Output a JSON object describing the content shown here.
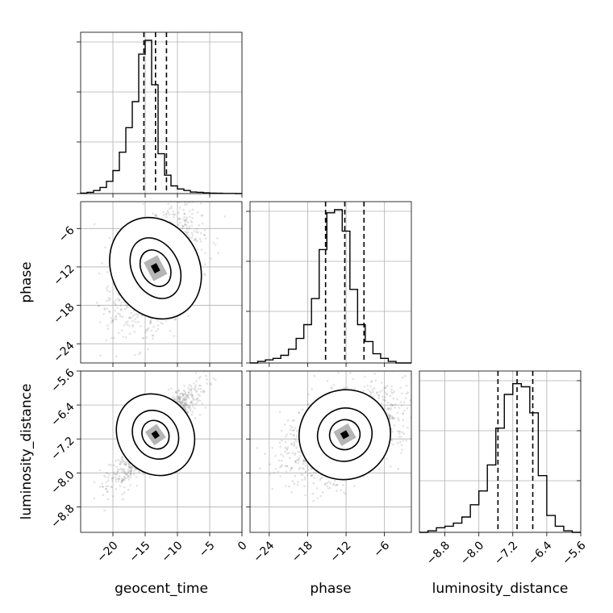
{
  "chart_data": {
    "type": "corner",
    "parameters": [
      "geocent_time",
      "phase",
      "luminosity_distance"
    ],
    "axis_labels": [
      "geocent_time",
      "phase",
      "luminosity_distance"
    ],
    "ranges": [
      [
        -25,
        0
      ],
      [
        -27,
        -1.8
      ],
      [
        -9.4,
        -5.6
      ]
    ],
    "ticks": [
      {
        "values": [
          -20,
          -15,
          -10,
          -5,
          0
        ],
        "labels": [
          "−20",
          "−15",
          "−10",
          "−5",
          "0"
        ]
      },
      {
        "values": [
          -24,
          -18,
          -12,
          -6
        ],
        "labels": [
          "−24",
          "−18",
          "−12",
          "−6"
        ]
      },
      {
        "values": [
          -8.8,
          -8.0,
          -7.2,
          -6.4,
          -5.6
        ],
        "labels": [
          "−8.8",
          "−8.0",
          "−7.2",
          "−6.4",
          "−5.6"
        ]
      }
    ],
    "quantiles": [
      [
        -15.2,
        -13.4,
        -11.7
      ],
      [
        -15.2,
        -12.2,
        -9.2
      ],
      [
        -7.55,
        -7.1,
        -6.73
      ]
    ],
    "histograms": [
      {
        "bin_edges": [
          -25,
          -24,
          -23,
          -22,
          -21,
          -20,
          -19,
          -18,
          -17,
          -16,
          -15,
          -14,
          -13,
          -12,
          -11,
          -10,
          -9,
          -8,
          -7,
          -6,
          -5,
          -4,
          -3,
          -2,
          -1,
          0
        ],
        "counts": [
          0.003,
          0.008,
          0.02,
          0.04,
          0.08,
          0.15,
          0.27,
          0.43,
          0.6,
          0.91,
          1.0,
          0.71,
          0.26,
          0.12,
          0.05,
          0.03,
          0.02,
          0.01,
          0.008,
          0.005,
          0.003,
          0.002,
          0.001,
          0.001,
          0.0
        ]
      },
      {
        "bin_edges": [
          -27.0,
          -25.8,
          -24.6,
          -23.4,
          -22.2,
          -21.0,
          -19.8,
          -18.6,
          -17.4,
          -16.2,
          -15.0,
          -13.8,
          -12.6,
          -11.4,
          -10.2,
          -9.0,
          -7.8,
          -6.6,
          -5.4,
          -4.2,
          -3.0,
          -1.8
        ],
        "counts": [
          0.0,
          0.01,
          0.02,
          0.03,
          0.05,
          0.09,
          0.16,
          0.25,
          0.42,
          0.74,
          0.98,
          1.0,
          0.86,
          0.48,
          0.25,
          0.14,
          0.06,
          0.03,
          0.01,
          0.0,
          0.0
        ]
      },
      {
        "bin_edges": [
          -9.4,
          -9.2,
          -9.0,
          -8.8,
          -8.6,
          -8.4,
          -8.2,
          -8.0,
          -7.8,
          -7.6,
          -7.4,
          -7.2,
          -7.0,
          -6.8,
          -6.6,
          -6.4,
          -6.2,
          -6.0,
          -5.8,
          -5.6
        ],
        "counts": [
          0.0,
          0.01,
          0.03,
          0.04,
          0.06,
          0.1,
          0.18,
          0.27,
          0.44,
          0.68,
          0.9,
          0.97,
          0.95,
          0.78,
          0.37,
          0.11,
          0.04,
          0.01,
          0.0
        ]
      }
    ],
    "pairs": [
      {
        "x_param": "geocent_time",
        "y_param": "phase",
        "center": [
          -13.4,
          -12.2
        ],
        "sd": [
          3.2,
          4.6
        ],
        "corr": 0.45,
        "n_points": 1500,
        "contour_levels": [
          {
            "rx": 2.2,
            "ry": 3.0,
            "rotation_deg": 28
          },
          {
            "rx": 3.6,
            "ry": 5.0,
            "rotation_deg": 28
          },
          {
            "rx": 6.8,
            "ry": 8.2,
            "rotation_deg": 28
          }
        ]
      },
      {
        "x_param": "geocent_time",
        "y_param": "luminosity_distance",
        "center": [
          -13.4,
          -7.1
        ],
        "sd": [
          3.2,
          0.55
        ],
        "corr": 0.9,
        "n_points": 1500,
        "contour_levels": [
          {
            "rx": 2.0,
            "ry": 0.35,
            "rotation_deg": 35
          },
          {
            "rx": 3.4,
            "ry": 0.6,
            "rotation_deg": 35
          },
          {
            "rx": 5.8,
            "ry": 1.0,
            "rotation_deg": 35
          }
        ]
      },
      {
        "x_param": "phase",
        "y_param": "luminosity_distance",
        "center": [
          -12.2,
          -7.1
        ],
        "sd": [
          4.6,
          0.55
        ],
        "corr": 0.45,
        "n_points": 1500,
        "contour_levels": [
          {
            "rx": 2.4,
            "ry": 0.35,
            "rotation_deg": 30
          },
          {
            "rx": 4.3,
            "ry": 0.62,
            "rotation_deg": 30
          },
          {
            "rx": 7.2,
            "ry": 1.05,
            "rotation_deg": 30
          }
        ]
      }
    ],
    "grid": true,
    "colors": {
      "hist": "#000000",
      "scatter": "#7f7f7f",
      "density_mid": "#b5b5b5",
      "density_high": "#000000",
      "grid": "#b0b0b0"
    }
  }
}
